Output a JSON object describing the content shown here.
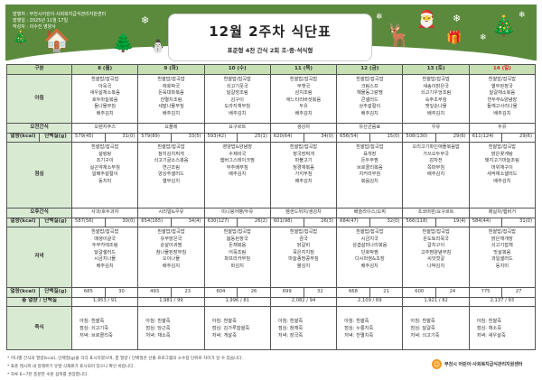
{
  "header": {
    "publisher": "발행처 : 부천시어린이·사회복지급식관리지원센터",
    "date": "발행일 : 2025년 11월 17일",
    "author": "작성자 : 이수진 영양사",
    "title": "12월 2주차 식단표",
    "subtitle": "표준형 4찬 간식 2회 조·중·석식형"
  },
  "labels": {
    "category": "구분",
    "breakfast": "아침",
    "am_snack": "오전간식",
    "kcal": "열량(kcal)",
    "protein": "단백질(g)",
    "lunch": "점심",
    "pm_snack": "오후간식",
    "dinner": "저녁",
    "total": "총 열량 / 단백질",
    "porridge": "죽식"
  },
  "colors": {
    "banner": "#5b8a3c",
    "header_row": "#c6e0b4",
    "label_col": "#d9ead3",
    "sunday": "#e02020"
  },
  "days": [
    {
      "date": "8 (월)",
      "breakfast": [
        "흰쌀밥/잡곡밥",
        "아욱국",
        "새우살채소볶음",
        "호두마늘볶음",
        "돌나물무침",
        "배추김치"
      ],
      "am_snack": "오렌지주스",
      "am_kcal": "579(45)",
      "am_protein": "31(0)",
      "lunch": [
        "흰쌀밥/잡곡밥",
        "설렁탕",
        "조기구이",
        "실곤약채소무침",
        "알배추겉절이",
        "동치미"
      ],
      "pm_snack": "사과/호두과자",
      "pm_kcal": "587(56)",
      "pm_protein": "30(0)",
      "dinner": [
        "흰쌀밥/잡곡밥",
        "매생이굴국",
        "두부카레조림",
        "달걀샐러드",
        "시금치나물",
        "배추김치"
      ],
      "dn_kcal": "685",
      "dn_protein": "30",
      "total": "1,953  /  91",
      "porridge": [
        "아침: 흰쌀죽",
        "점심: 쇠고기죽",
        "저녁: 브로콜리죽"
      ]
    },
    {
      "date": "9 (화)",
      "breakfast": [
        "흰쌀밥/잡곡밥",
        "애호박국",
        "돈육대파볶음",
        "잔멸치조림",
        "세발나물무침",
        "배추김치"
      ],
      "am_snack": "요플레",
      "am_kcal": "579(89)",
      "am_protein": "33(5)",
      "lunch": [
        "흰쌀밥/잡곡밥",
        "참치김치찌개",
        "쇠고기굴소스볶음",
        "연근조림",
        "양상추샐러드",
        "열무김치"
      ],
      "pm_snack": "시리얼&우유",
      "pm_kcal": "654(165)",
      "pm_protein": "34(4)",
      "dinner": [
        "흰쌀밥/잡곡밥",
        "유부맑은국",
        "순살아귀찜",
        "참나물된장무침",
        "오이나물",
        "배추김치"
      ],
      "dn_kcal": "493",
      "dn_protein": "23",
      "total": "1,981  /  99",
      "porridge": [
        "아침: 흰쌀죽",
        "점심: 당근죽",
        "저녁: 채소죽"
      ]
    },
    {
      "date": "10 (수)",
      "breakfast": [
        "흰쌀밥/잡곡밥",
        "쇠고기뭇국",
        "달걀장조림",
        "김구이",
        "도라지채무침",
        "배추김치"
      ],
      "am_snack": "요구르트",
      "am_kcal": "593(42)",
      "am_protein": "25(1)",
      "lunch": [
        "영양밥&양념장",
        "수제비국",
        "햄버그스테이크찜",
        "부추배무침",
        "배추김치"
      ],
      "pm_snack": "미니붕어빵/두유",
      "pm_kcal": "630(127)",
      "pm_protein": "26(2)",
      "dinner": [
        "흰쌀밥/잡곡밥",
        "봄동된장국",
        "돈채볶음",
        "어묵조림",
        "파프리카무침",
        "파김치"
      ],
      "dn_kcal": "604",
      "dn_protein": "26",
      "total": "1,996  /  81",
      "porridge": [
        "아침: 흰쌀죽",
        "점심: 김가루찹쌀죽",
        "저녁: 게살죽"
      ]
    },
    {
      "date": "11 (목)",
      "breakfast": [
        "흰쌀밥/잡곡밥",
        "무챗국",
        "삼치조림",
        "애느타리버섯볶음",
        "두유",
        "배추김치"
      ],
      "am_snack": "생강차",
      "am_kcal": "620(64)",
      "am_protein": "34(0)",
      "lunch": [
        "흰쌀밥/잡곡밥",
        "청국장찌개",
        "파불고기",
        "청경채볶음",
        "가지무침",
        "배추김치"
      ],
      "pm_snack": "잼샌드위치/생강차",
      "pm_kcal": "601(98)",
      "pm_protein": "26(3)",
      "dinner": [
        "흰쌀밥/잡곡밥",
        "곰국",
        "닭갈비",
        "묵은지지짐",
        "마늘종땅콩무침",
        "물김치"
      ],
      "dn_kcal": "699",
      "dn_protein": "32",
      "total": "2,082  /  94",
      "porridge": [
        "아침: 흰쌀죽",
        "점심: 참깨죽",
        "저녁: 장국죽"
      ]
    },
    {
      "date": "12 (금)",
      "breakfast": [
        "흰쌀밥/잡곡밥",
        "크림스프",
        "해물동그랑땡",
        "콘샐러드",
        "상추겉절이",
        "배추김치"
      ],
      "am_snack": "유산균음료",
      "am_kcal": "656(54)",
      "am_protein": "15(0)",
      "lunch": [
        "흰쌀밥/잡곡밥",
        "육개장",
        "돈두부찜",
        "브로콜리볶음",
        "치커리무침",
        "볶음김치"
      ],
      "pm_snack": "배슬라이스/오찌",
      "pm_kcal": "684(47)",
      "pm_protein": "32(0)",
      "dinner": [
        "흰쌀밥/잡곡밥",
        "시금치국",
        "삼겹살미나리볶음",
        "단호박찜",
        "다시마쌈&초장",
        "배추김치"
      ],
      "dn_kcal": "668",
      "dn_protein": "21",
      "total": "2,109  /  69",
      "porridge": [
        "아침: 흰쌀죽",
        "점심: 누룽지죽",
        "저녁: 잔멸치죽"
      ]
    },
    {
      "date": "13 (토)",
      "breakfast": [
        "흰쌀밥/잡곡밥",
        "새송이맑은국",
        "쇠고기우엉조림",
        "숙주초무침",
        "깻잎순나물",
        "배추김치"
      ],
      "am_snack": "우유",
      "am_kcal": "508(130)",
      "am_protein": "29(6)",
      "lunch": [
        "오리고기파인애플볶음밥",
        "가쓰오두부국",
        "감자전",
        "쪽파무침",
        "배추김치"
      ],
      "pm_snack": "초코머핀/요구르트",
      "pm_kcal": "566(118)",
      "pm_protein": "19(4)",
      "dinner": [
        "흰쌀밥/잡곡밥",
        "온도토리묵국",
        "갈치구이",
        "고추찜양념무침",
        "씨앗젓갈",
        "나박김치"
      ],
      "dn_kcal": "600",
      "dn_protein": "24",
      "total": "1,921  /  82",
      "porridge": [
        "아침: 흰쌀죽",
        "점심: 달걀죽",
        "저녁: 쇠고기죽"
      ]
    },
    {
      "date": "14 (일)",
      "breakfast": [
        "흰쌀밥/잡곡밥",
        "열무된장국",
        "달걀채소볶음",
        "연두부&양념장",
        "들깨고사리나물",
        "배추김치"
      ],
      "am_snack": "두유",
      "am_kcal": "611(124)",
      "am_protein": "29(6)",
      "lunch": [
        "흰쌀밥/잡곡밥",
        "맑은꽃게탕",
        "돼지고기마늘조림",
        "머위채구이",
        "새싹채소샐러드",
        "배추김치"
      ],
      "pm_snack": "매실차/햄버거",
      "pm_kcal": "584(44)",
      "pm_protein": "31(0)",
      "dinner": [
        "흰쌀밥/잡곡밥",
        "맑은채개장",
        "쇠고기잡채",
        "맛살볶음",
        "과일샐러드",
        "동치미"
      ],
      "dn_kcal": "775",
      "dn_protein": "27",
      "total": "2,137  /  93",
      "porridge": [
        "아침: 흰쌀죽",
        "점심: 채소죽",
        "저녁: 새우살죽"
      ]
    }
  ],
  "notes": [
    "* 끼니별 간식의 열량(kcal), 단백질(g)을 각각 표시하였으며, 총 열량 / 단백질은 산출 프로그램의 소수점 단위로 차이가 날 수 있습니다.",
    "* 표준 레시피 내 알레르기 유발 식재료가 표시되어 있으니 확인 바랍니다.",
    "* 하루 6~7잔 충분한 수분 섭취를 권장합니다."
  ],
  "footer_logo": "부천시 어린이·사회복지급식관리지원센터"
}
